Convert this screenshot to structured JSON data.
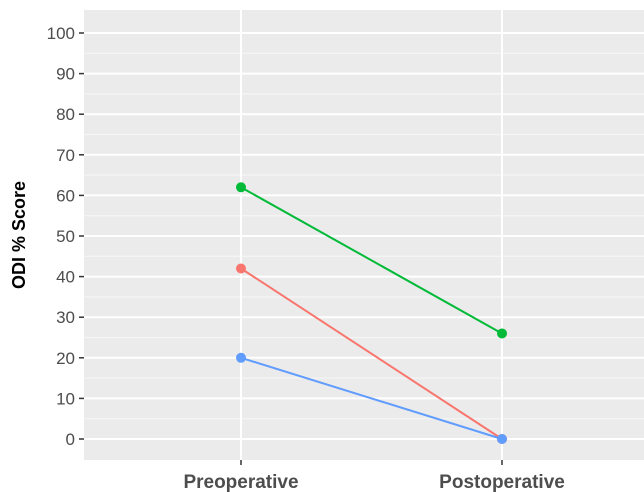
{
  "chart_data": {
    "type": "line",
    "title": "",
    "xlabel": "",
    "ylabel": "ODI % Score",
    "categories": [
      "Preoperative",
      "Postoperative"
    ],
    "ylim": [
      -5,
      105
    ],
    "yticks": [
      0,
      10,
      20,
      30,
      40,
      50,
      60,
      70,
      80,
      90,
      100
    ],
    "grid": true,
    "legend": "none",
    "series": [
      {
        "color": "#00BA38",
        "values": [
          62,
          26
        ]
      },
      {
        "color": "#F8766D",
        "values": [
          42,
          0
        ]
      },
      {
        "color": "#619CFF",
        "values": [
          20,
          0
        ]
      }
    ]
  },
  "colors": {
    "panel_background": "#EBEBEB",
    "grid_major": "#FFFFFF",
    "grid_minor": "#F5F5F5",
    "tick_text": "#4D4D4D",
    "axis_title": "#000000"
  }
}
